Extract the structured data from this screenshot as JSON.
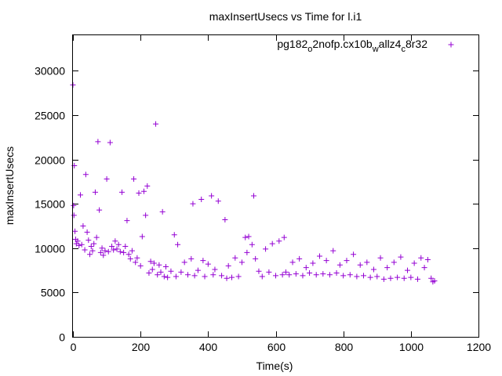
{
  "chart_data": {
    "type": "scatter",
    "title": "maxInsertUsecs vs Time for l.i1",
    "xlabel": "Time(s)",
    "ylabel": "maxInsertUsecs",
    "xlim": [
      0,
      1200
    ],
    "ylim": [
      0,
      34000
    ],
    "xticks": [
      0,
      200,
      400,
      600,
      800,
      1000,
      1200
    ],
    "yticks": [
      0,
      5000,
      10000,
      15000,
      20000,
      25000,
      30000
    ],
    "grid": false,
    "legend_position": "top-right",
    "marker": "plus",
    "series": [
      {
        "name_parts": [
          "pg182",
          "o",
          "2nofp.cx10b",
          "w",
          "allz4",
          "c",
          "8r32"
        ],
        "color": "#9400d3",
        "points": [
          [
            0,
            28400
          ],
          [
            2,
            14800
          ],
          [
            3,
            13700
          ],
          [
            4,
            19300
          ],
          [
            6,
            11900
          ],
          [
            8,
            11000
          ],
          [
            10,
            10500
          ],
          [
            14,
            10800
          ],
          [
            18,
            10300
          ],
          [
            22,
            16000
          ],
          [
            26,
            10400
          ],
          [
            30,
            12500
          ],
          [
            35,
            9800
          ],
          [
            38,
            18300
          ],
          [
            42,
            11800
          ],
          [
            46,
            10900
          ],
          [
            50,
            9300
          ],
          [
            54,
            10200
          ],
          [
            58,
            9700
          ],
          [
            62,
            10500
          ],
          [
            66,
            16300
          ],
          [
            70,
            11200
          ],
          [
            74,
            22000
          ],
          [
            78,
            14300
          ],
          [
            82,
            9500
          ],
          [
            86,
            10000
          ],
          [
            90,
            9200
          ],
          [
            95,
            9700
          ],
          [
            100,
            17800
          ],
          [
            105,
            9600
          ],
          [
            110,
            21900
          ],
          [
            115,
            10200
          ],
          [
            120,
            9800
          ],
          [
            125,
            10800
          ],
          [
            130,
            9900
          ],
          [
            135,
            10400
          ],
          [
            140,
            9600
          ],
          [
            145,
            16300
          ],
          [
            150,
            9500
          ],
          [
            155,
            10200
          ],
          [
            160,
            13100
          ],
          [
            165,
            9300
          ],
          [
            170,
            8800
          ],
          [
            175,
            9700
          ],
          [
            180,
            17800
          ],
          [
            185,
            8400
          ],
          [
            190,
            8900
          ],
          [
            195,
            16200
          ],
          [
            200,
            8000
          ],
          [
            205,
            11300
          ],
          [
            210,
            16400
          ],
          [
            215,
            13700
          ],
          [
            220,
            17000
          ],
          [
            225,
            7200
          ],
          [
            230,
            8500
          ],
          [
            235,
            7600
          ],
          [
            240,
            8300
          ],
          [
            245,
            24000
          ],
          [
            250,
            7000
          ],
          [
            255,
            8100
          ],
          [
            260,
            7300
          ],
          [
            265,
            14100
          ],
          [
            270,
            6800
          ],
          [
            275,
            7900
          ],
          [
            280,
            6700
          ],
          [
            290,
            7400
          ],
          [
            300,
            11500
          ],
          [
            305,
            6800
          ],
          [
            310,
            10400
          ],
          [
            320,
            7300
          ],
          [
            330,
            8400
          ],
          [
            340,
            7000
          ],
          [
            350,
            8800
          ],
          [
            355,
            15000
          ],
          [
            360,
            6900
          ],
          [
            370,
            7500
          ],
          [
            380,
            15500
          ],
          [
            385,
            8600
          ],
          [
            390,
            6800
          ],
          [
            400,
            8200
          ],
          [
            410,
            15900
          ],
          [
            415,
            7000
          ],
          [
            420,
            7600
          ],
          [
            430,
            15300
          ],
          [
            440,
            6900
          ],
          [
            450,
            13200
          ],
          [
            455,
            6600
          ],
          [
            460,
            8000
          ],
          [
            470,
            6700
          ],
          [
            480,
            8900
          ],
          [
            490,
            6800
          ],
          [
            500,
            8400
          ],
          [
            510,
            11200
          ],
          [
            515,
            9500
          ],
          [
            520,
            11300
          ],
          [
            530,
            10400
          ],
          [
            535,
            15900
          ],
          [
            540,
            8800
          ],
          [
            550,
            7400
          ],
          [
            560,
            6800
          ],
          [
            570,
            9900
          ],
          [
            580,
            7300
          ],
          [
            590,
            10500
          ],
          [
            600,
            6900
          ],
          [
            610,
            10800
          ],
          [
            620,
            7000
          ],
          [
            625,
            11200
          ],
          [
            630,
            7300
          ],
          [
            640,
            7000
          ],
          [
            650,
            8400
          ],
          [
            660,
            7100
          ],
          [
            670,
            8800
          ],
          [
            680,
            6900
          ],
          [
            690,
            7800
          ],
          [
            700,
            7200
          ],
          [
            710,
            8300
          ],
          [
            720,
            7000
          ],
          [
            730,
            9100
          ],
          [
            740,
            7100
          ],
          [
            750,
            8600
          ],
          [
            760,
            7000
          ],
          [
            770,
            9700
          ],
          [
            780,
            7200
          ],
          [
            790,
            8100
          ],
          [
            800,
            6900
          ],
          [
            810,
            8600
          ],
          [
            820,
            7000
          ],
          [
            830,
            9300
          ],
          [
            840,
            6800
          ],
          [
            850,
            8100
          ],
          [
            860,
            6900
          ],
          [
            870,
            8400
          ],
          [
            880,
            6700
          ],
          [
            890,
            7600
          ],
          [
            900,
            6800
          ],
          [
            910,
            8900
          ],
          [
            920,
            6500
          ],
          [
            930,
            7800
          ],
          [
            940,
            6600
          ],
          [
            950,
            8400
          ],
          [
            960,
            6700
          ],
          [
            970,
            9000
          ],
          [
            980,
            6600
          ],
          [
            990,
            7500
          ],
          [
            1000,
            6700
          ],
          [
            1010,
            8300
          ],
          [
            1020,
            6500
          ],
          [
            1030,
            8900
          ],
          [
            1040,
            7800
          ],
          [
            1050,
            8700
          ],
          [
            1060,
            6600
          ],
          [
            1065,
            6200
          ],
          [
            1070,
            6300
          ]
        ]
      }
    ]
  }
}
